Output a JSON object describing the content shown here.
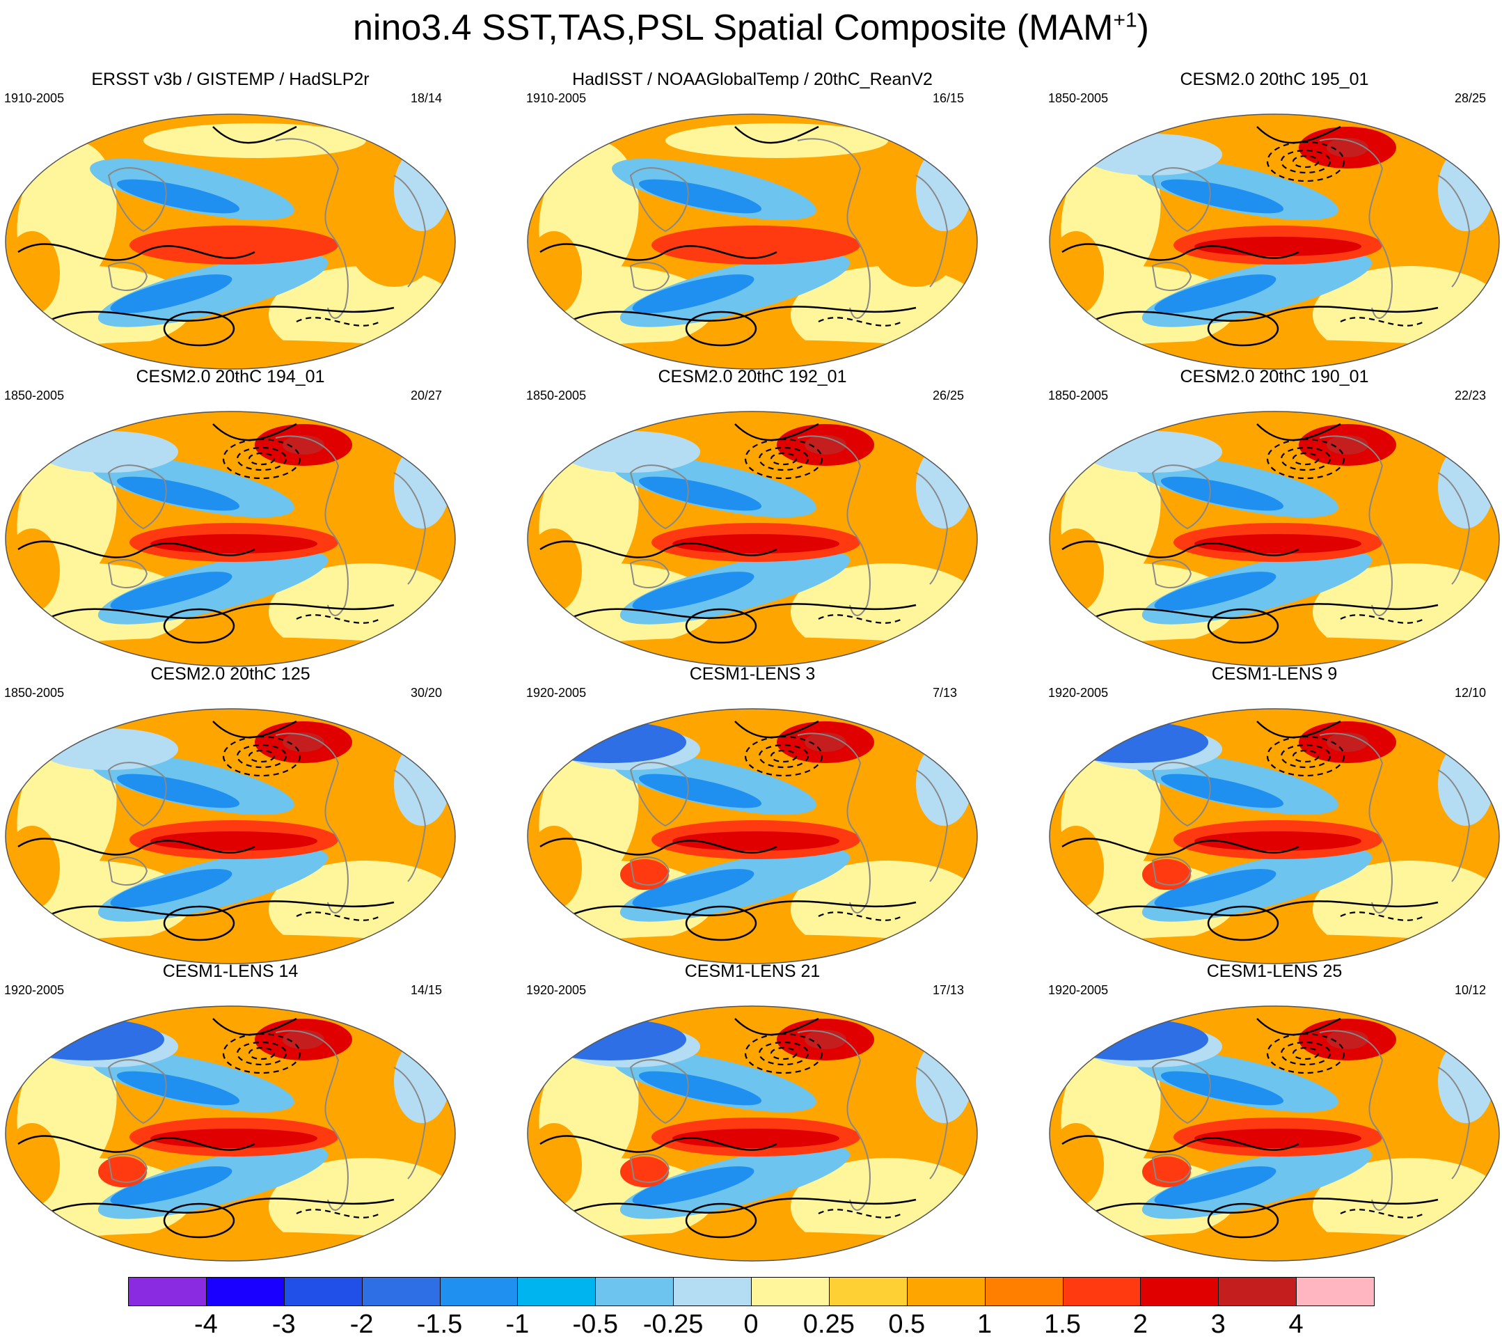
{
  "title": {
    "main": "nino3.4 SST,TAS,PSL Spatial Composite (MAM",
    "superscript": "+1",
    "closing": ")"
  },
  "panels": [
    {
      "title": "ERSST v3b / GISTEMP / HadSLP2r",
      "period": "1910-2005",
      "count": "18/14",
      "style": "obs"
    },
    {
      "title": "HadISST / NOAAGlobalTemp / 20thC_ReanV2",
      "period": "1910-2005",
      "count": "16/15",
      "style": "obs2"
    },
    {
      "title": "CESM2.0 20thC 195_01",
      "period": "1850-2005",
      "count": "28/25",
      "style": "model"
    },
    {
      "title": "CESM2.0 20thC 194_01",
      "period": "1850-2005",
      "count": "20/27",
      "style": "model"
    },
    {
      "title": "CESM2.0 20thC 192_01",
      "period": "1850-2005",
      "count": "26/25",
      "style": "model"
    },
    {
      "title": "CESM2.0 20thC 190_01",
      "period": "1850-2005",
      "count": "22/23",
      "style": "model"
    },
    {
      "title": "CESM2.0 20thC 125",
      "period": "1850-2005",
      "count": "30/20",
      "style": "model"
    },
    {
      "title": "CESM1-LENS 3",
      "period": "1920-2005",
      "count": "7/13",
      "style": "lens"
    },
    {
      "title": "CESM1-LENS 9",
      "period": "1920-2005",
      "count": "12/10",
      "style": "lens"
    },
    {
      "title": "CESM1-LENS 14",
      "period": "1920-2005",
      "count": "14/15",
      "style": "lens"
    },
    {
      "title": "CESM1-LENS 21",
      "period": "1920-2005",
      "count": "17/13",
      "style": "lens"
    },
    {
      "title": "CESM1-LENS 25",
      "period": "1920-2005",
      "count": "10/12",
      "style": "lens"
    }
  ],
  "colorbar": {
    "labels": [
      "-4",
      "-3",
      "-2",
      "-1.5",
      "-1",
      "-0.5",
      "-0.25",
      "0",
      "0.25",
      "0.5",
      "1",
      "1.5",
      "2",
      "3",
      "4"
    ],
    "colors": [
      "#8a2be2",
      "#1a00ff",
      "#2050e8",
      "#2f6fe6",
      "#1f8ff0",
      "#00b4f0",
      "#6dc4ee",
      "#b4dcf2",
      "#fff59a",
      "#ffd033",
      "#ffa500",
      "#ff7f00",
      "#ff3a10",
      "#e00000",
      "#c41e1e",
      "#ffb6c1"
    ]
  },
  "palette": {
    "ocean_warm": "#ffa500",
    "ocean_hot": "#ff3a10",
    "ocean_cool": "#6dc4ee",
    "ocean_cold": "#1f8ff0",
    "neutral_pos": "#fff59a",
    "neutral_neg": "#b4dcf2",
    "coastline": "#888888",
    "contour": "#000000",
    "missing": "#ffffff"
  }
}
